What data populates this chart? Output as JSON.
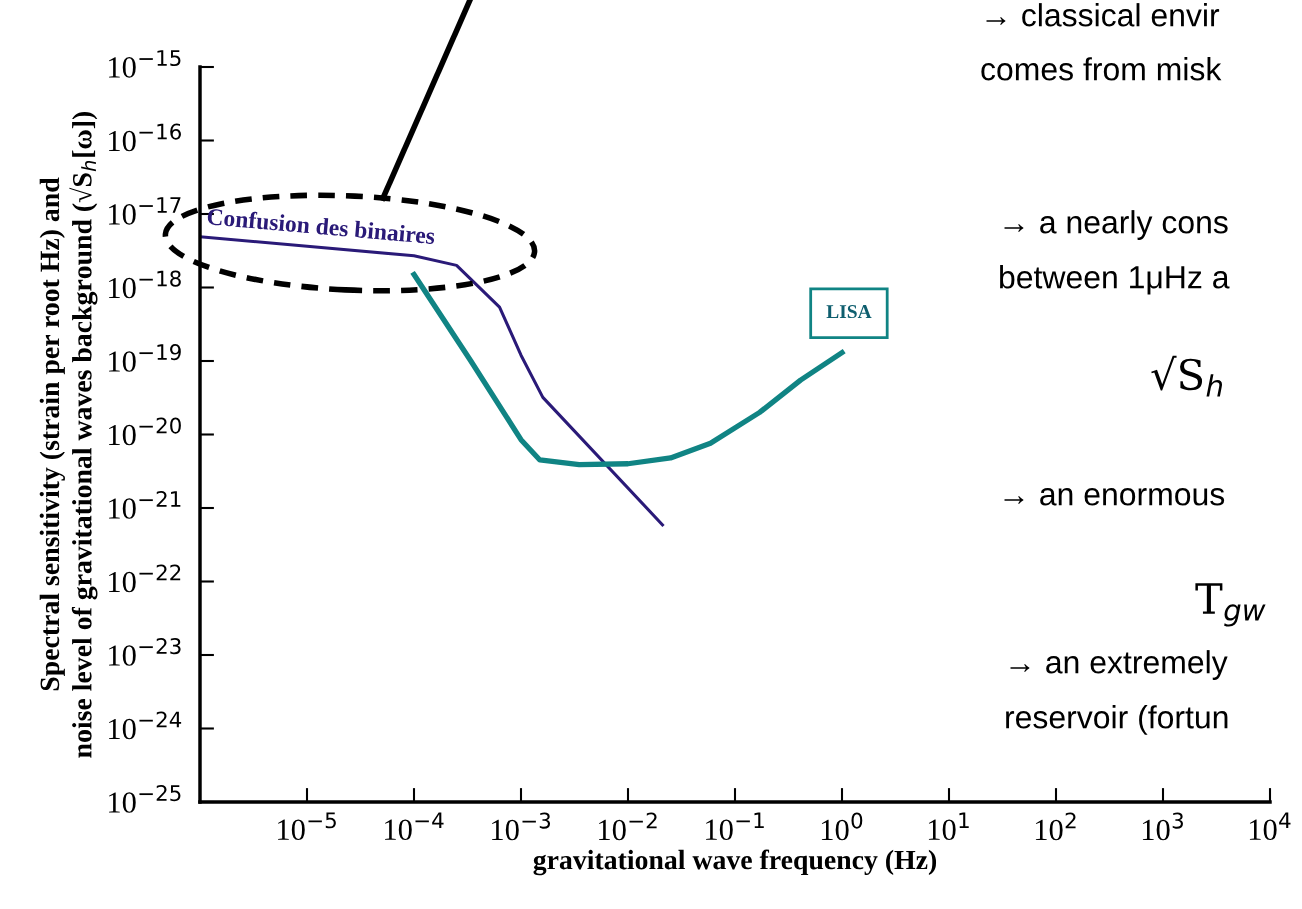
{
  "chart_data": {
    "type": "line",
    "xlabel": "gravitational wave frequency (Hz)",
    "ylabel": "Spectral sensitivity (strain per root Hz) and\nnoise level of gravitational waves background (√S$_{h}$[ω])",
    "log": "xy",
    "grid": false,
    "legend": false,
    "marker": "none",
    "line_style": "solid",
    "xlim": [
      1e-06,
      10000.0
    ],
    "ylim": [
      1e-25,
      1e-15
    ],
    "xticks": [
      {
        "value": 1e-05,
        "label": "10$^{−5}$"
      },
      {
        "value": 0.0001,
        "label": "10$^{−4}$"
      },
      {
        "value": 0.001,
        "label": "10$^{−3}$"
      },
      {
        "value": 0.01,
        "label": "10$^{−2}$"
      },
      {
        "value": 0.1,
        "label": "10$^{−1}$"
      },
      {
        "value": 1,
        "label": "10$^{0}$"
      },
      {
        "value": 10,
        "label": "10$^{1}$"
      },
      {
        "value": 100,
        "label": "10$^{2}$"
      },
      {
        "value": 1000,
        "label": "10$^{3}$"
      },
      {
        "value": 10000,
        "label": "10$^{4}$"
      }
    ],
    "yticks": [
      {
        "value": 1e-25,
        "label": "10$^{−25}$"
      },
      {
        "value": 1e-24,
        "label": "10$^{−24}$"
      },
      {
        "value": 1e-23,
        "label": "10$^{−23}$"
      },
      {
        "value": 1e-22,
        "label": "10$^{−22}$"
      },
      {
        "value": 1e-21,
        "label": "10$^{−21}$"
      },
      {
        "value": 1e-20,
        "label": "10$^{−20}$"
      },
      {
        "value": 1e-19,
        "label": "10$^{−19}$"
      },
      {
        "value": 1e-18,
        "label": "10$^{−18}$"
      },
      {
        "value": 1e-17,
        "label": "10$^{−17}$"
      },
      {
        "value": 1e-16,
        "label": "10$^{−16}$"
      },
      {
        "value": 1e-15,
        "label": "10$^{−15}$"
      }
    ],
    "series": [
      {
        "name": "Confusion des binaires",
        "color": "#2a1a78",
        "x": [
          1e-06,
          0.0001,
          0.00025,
          0.00063,
          0.001,
          0.0016,
          0.021
        ],
        "values": [
          4.9e-18,
          2.7e-18,
          2e-18,
          5.4e-19,
          1.2e-19,
          3.2e-20,
          5.9e-22
        ]
      },
      {
        "name": "LISA",
        "color": "#108484",
        "x": [
          0.0001,
          0.00034,
          0.001,
          0.0015,
          0.0035,
          0.01,
          0.025,
          0.059,
          0.17,
          0.41,
          1
        ],
        "values": [
          1.5e-18,
          1e-19,
          8.5e-21,
          4.5e-21,
          3.9e-21,
          4e-21,
          4.8e-21,
          7.6e-21,
          2e-20,
          5.5e-20,
          1.3e-19
        ]
      }
    ],
    "annotations": [
      "→ classical envir",
      "comes from misk",
      "→ a nearly cons",
      "between 1μHz a",
      "√S$_{h}$",
      "→ an enormous",
      "T$_{gw}$",
      "→ an extremely",
      "reservoir (fortun"
    ]
  }
}
